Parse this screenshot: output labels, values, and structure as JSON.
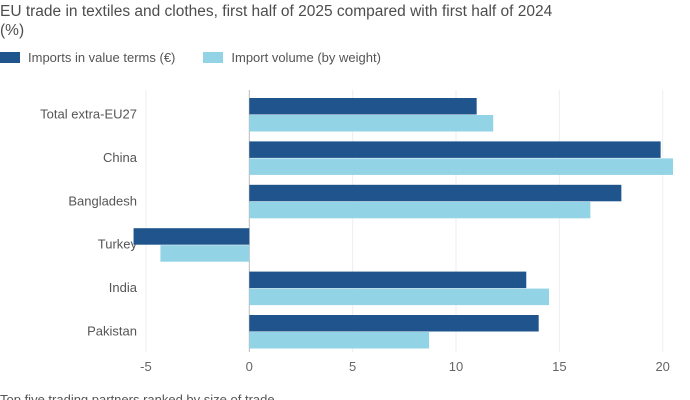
{
  "chart_data": {
    "type": "bar",
    "orientation": "horizontal",
    "title": "EU trade in textiles and clothes, first half of 2025 compared with first half of 2024",
    "subtitle": "(%)",
    "categories": [
      "Total extra-EU27",
      "China",
      "Bangladesh",
      "Turkey",
      "India",
      "Pakistan"
    ],
    "series": [
      {
        "name": "Imports in value terms (€)",
        "color": "#1f558c",
        "values": [
          11.0,
          19.9,
          18.0,
          -5.6,
          13.4,
          14.0
        ]
      },
      {
        "name": "Import volume (by weight)",
        "color": "#92d3e6",
        "values": [
          11.8,
          20.5,
          16.5,
          -4.3,
          14.5,
          8.7
        ]
      }
    ],
    "xlim": [
      -6,
      20.7
    ],
    "xticks": [
      -5,
      0,
      5,
      10,
      15,
      20
    ],
    "xtick_labels": [
      "-5",
      "0",
      "5",
      "10",
      "15",
      "20"
    ],
    "grid": true,
    "legend": "top-left",
    "note": "Top five trading partners ranked by size of trade"
  }
}
